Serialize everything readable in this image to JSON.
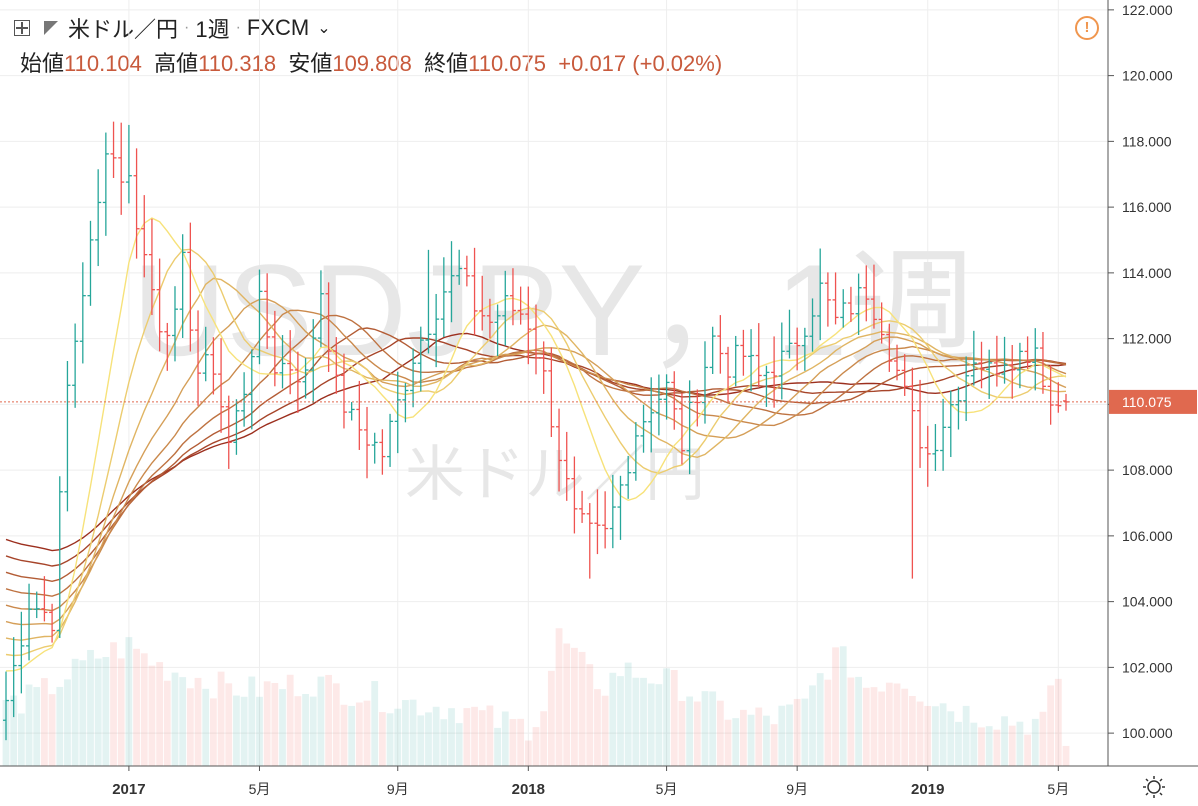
{
  "header": {
    "symbol": "米ドル／円",
    "interval": "1週",
    "source": "FXCM",
    "open_label": "始値",
    "open": "110.104",
    "high_label": "高値",
    "high": "110.318",
    "low_label": "安値",
    "low": "109.808",
    "close_label": "終値",
    "close": "110.075",
    "change": "+0.017",
    "change_pct": "(+0.02%)"
  },
  "watermark": {
    "main": "USDJPY，1週",
    "sub": "米ドル／円"
  },
  "price_label": "110.075",
  "colors": {
    "up": "#26a69a",
    "down": "#ef5350",
    "ma_light": "#f7e27a",
    "ma_dark": "#9c2f1e",
    "price_label_bg": "#e0694f",
    "value_text": "#c85a3c"
  },
  "chart_data": {
    "type": "ohlc",
    "title": "USDJPY，1週",
    "ylim": [
      99,
      122.3
    ],
    "y_ticks": [
      "100.000",
      "102.000",
      "104.000",
      "106.000",
      "108.000",
      "110.000",
      "112.000",
      "114.000",
      "116.000",
      "118.000",
      "120.000",
      "122.000"
    ],
    "x_ticks": [
      {
        "label": "2017",
        "week": 16
      },
      {
        "label": "5月",
        "week": 33
      },
      {
        "label": "9月",
        "week": 51
      },
      {
        "label": "2018",
        "week": 68
      },
      {
        "label": "5月",
        "week": 86
      },
      {
        "label": "9月",
        "week": 103
      },
      {
        "label": "2019",
        "week": 120
      },
      {
        "label": "5月",
        "week": 137
      }
    ],
    "close_anchors": [
      [
        0,
        101.0
      ],
      [
        3,
        104.0
      ],
      [
        6,
        103.5
      ],
      [
        8,
        110.5
      ],
      [
        10,
        113.5
      ],
      [
        12,
        116.0
      ],
      [
        13,
        118.0
      ],
      [
        15,
        117.0
      ],
      [
        16,
        116.8
      ],
      [
        18,
        114.5
      ],
      [
        20,
        112.5
      ],
      [
        22,
        112.5
      ],
      [
        23,
        114.2
      ],
      [
        25,
        111.0
      ],
      [
        27,
        111.2
      ],
      [
        29,
        108.8
      ],
      [
        31,
        110.5
      ],
      [
        33,
        113.0
      ],
      [
        35,
        111.2
      ],
      [
        37,
        111.2
      ],
      [
        39,
        110.8
      ],
      [
        41,
        113.5
      ],
      [
        43,
        110.5
      ],
      [
        45,
        109.5
      ],
      [
        47,
        109.0
      ],
      [
        49,
        108.5
      ],
      [
        51,
        110.0
      ],
      [
        53,
        111.5
      ],
      [
        55,
        112.5
      ],
      [
        57,
        113.5
      ],
      [
        59,
        114.0
      ],
      [
        61,
        113.0
      ],
      [
        63,
        112.5
      ],
      [
        65,
        113.0
      ],
      [
        67,
        112.8
      ],
      [
        68,
        112.5
      ],
      [
        70,
        110.8
      ],
      [
        72,
        108.5
      ],
      [
        74,
        106.5
      ],
      [
        76,
        106.0
      ],
      [
        78,
        106.0
      ],
      [
        80,
        107.5
      ],
      [
        82,
        109.2
      ],
      [
        84,
        110.0
      ],
      [
        86,
        110.5
      ],
      [
        88,
        108.8
      ],
      [
        90,
        110.5
      ],
      [
        92,
        112.0
      ],
      [
        94,
        111.2
      ],
      [
        96,
        111.5
      ],
      [
        98,
        110.8
      ],
      [
        100,
        111.2
      ],
      [
        102,
        111.5
      ],
      [
        104,
        112.5
      ],
      [
        106,
        113.5
      ],
      [
        108,
        112.5
      ],
      [
        110,
        113.0
      ],
      [
        112,
        113.5
      ],
      [
        114,
        112.5
      ],
      [
        116,
        111.0
      ],
      [
        118,
        109.5
      ],
      [
        120,
        108.5
      ],
      [
        122,
        109.5
      ],
      [
        124,
        110.5
      ],
      [
        126,
        111.5
      ],
      [
        128,
        111.0
      ],
      [
        130,
        111.5
      ],
      [
        132,
        111.5
      ],
      [
        134,
        111.8
      ],
      [
        136,
        110.0
      ],
      [
        138,
        110.075
      ]
    ],
    "volume_anchors": [
      [
        0,
        0.3
      ],
      [
        4,
        0.35
      ],
      [
        8,
        0.45
      ],
      [
        12,
        0.55
      ],
      [
        16,
        0.6
      ],
      [
        20,
        0.5
      ],
      [
        24,
        0.45
      ],
      [
        28,
        0.4
      ],
      [
        32,
        0.38
      ],
      [
        36,
        0.4
      ],
      [
        40,
        0.42
      ],
      [
        44,
        0.38
      ],
      [
        48,
        0.35
      ],
      [
        52,
        0.32
      ],
      [
        56,
        0.3
      ],
      [
        60,
        0.28
      ],
      [
        64,
        0.22
      ],
      [
        68,
        0.2
      ],
      [
        70,
        0.3
      ],
      [
        72,
        0.65
      ],
      [
        74,
        0.55
      ],
      [
        76,
        0.45
      ],
      [
        78,
        0.4
      ],
      [
        80,
        0.48
      ],
      [
        84,
        0.45
      ],
      [
        88,
        0.4
      ],
      [
        92,
        0.3
      ],
      [
        96,
        0.25
      ],
      [
        100,
        0.24
      ],
      [
        104,
        0.3
      ],
      [
        106,
        0.45
      ],
      [
        108,
        0.55
      ],
      [
        110,
        0.5
      ],
      [
        112,
        0.4
      ],
      [
        116,
        0.45
      ],
      [
        118,
        0.4
      ],
      [
        120,
        0.35
      ],
      [
        124,
        0.28
      ],
      [
        128,
        0.25
      ],
      [
        132,
        0.22
      ],
      [
        135,
        0.22
      ],
      [
        137,
        0.45
      ],
      [
        138,
        0.1
      ]
    ],
    "ma_periods": [
      10,
      15,
      20,
      25,
      30,
      35,
      40,
      45,
      50
    ]
  }
}
